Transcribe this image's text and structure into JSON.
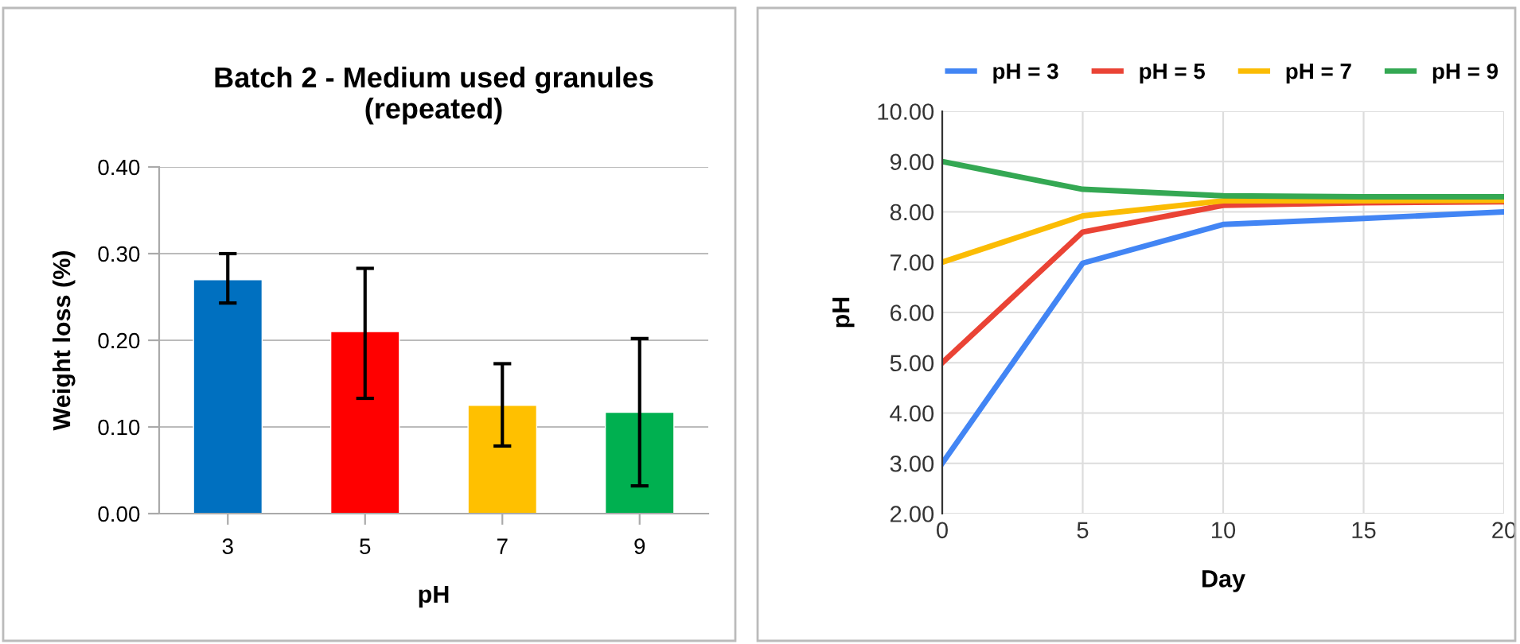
{
  "chart_data": [
    {
      "type": "bar",
      "title": "Batch 2 - Medium used granules\n(repeated)",
      "xlabel": "pH",
      "ylabel": "Weight loss (%)",
      "categories": [
        "3",
        "5",
        "7",
        "9"
      ],
      "values": [
        0.27,
        0.21,
        0.125,
        0.117
      ],
      "colors": [
        "#0070c0",
        "#ff0000",
        "#ffc000",
        "#00b050"
      ],
      "errors": [
        [
          0.243,
          0.3
        ],
        [
          0.133,
          0.283
        ],
        [
          0.078,
          0.173
        ],
        [
          0.032,
          0.202
        ]
      ],
      "ylim": [
        0,
        0.4
      ],
      "yticks": [
        {
          "value": 0,
          "label": "0.00"
        },
        {
          "value": 0.1,
          "label": "0.10"
        },
        {
          "value": 0.2,
          "label": "0.20"
        },
        {
          "value": 0.3,
          "label": "0.30"
        },
        {
          "value": 0.4,
          "label": "0.40"
        }
      ],
      "grid": "y"
    },
    {
      "type": "line",
      "xlabel": "Day",
      "ylabel": "pH",
      "x": [
        0,
        5,
        10,
        15,
        20
      ],
      "series": [
        {
          "name": "pH = 3",
          "color": "#4285f4",
          "values": [
            3,
            6.98,
            7.75,
            7.87,
            8.0
          ]
        },
        {
          "name": "pH = 5",
          "color": "#ea4335",
          "values": [
            5,
            7.6,
            8.13,
            8.18,
            8.2
          ]
        },
        {
          "name": "pH = 7",
          "color": "#fbbc04",
          "values": [
            7,
            7.92,
            8.22,
            8.22,
            8.23
          ]
        },
        {
          "name": "pH = 9",
          "color": "#34a853",
          "values": [
            9,
            8.45,
            8.32,
            8.3,
            8.3
          ]
        }
      ],
      "xlim": [
        0,
        20
      ],
      "xticks": [
        0,
        5,
        10,
        15,
        20
      ],
      "ylim": [
        2,
        10
      ],
      "yticks": [
        {
          "value": 2,
          "label": "2.00"
        },
        {
          "value": 3,
          "label": "3.00"
        },
        {
          "value": 4,
          "label": "4.00"
        },
        {
          "value": 5,
          "label": "5.00"
        },
        {
          "value": 6,
          "label": "6.00"
        },
        {
          "value": 7,
          "label": "7.00"
        },
        {
          "value": 8,
          "label": "8.00"
        },
        {
          "value": 9,
          "label": "9.00"
        },
        {
          "value": 10,
          "label": "10.00"
        }
      ],
      "grid": true,
      "legend": "top",
      "marker": "none",
      "line_style": "solid"
    }
  ]
}
